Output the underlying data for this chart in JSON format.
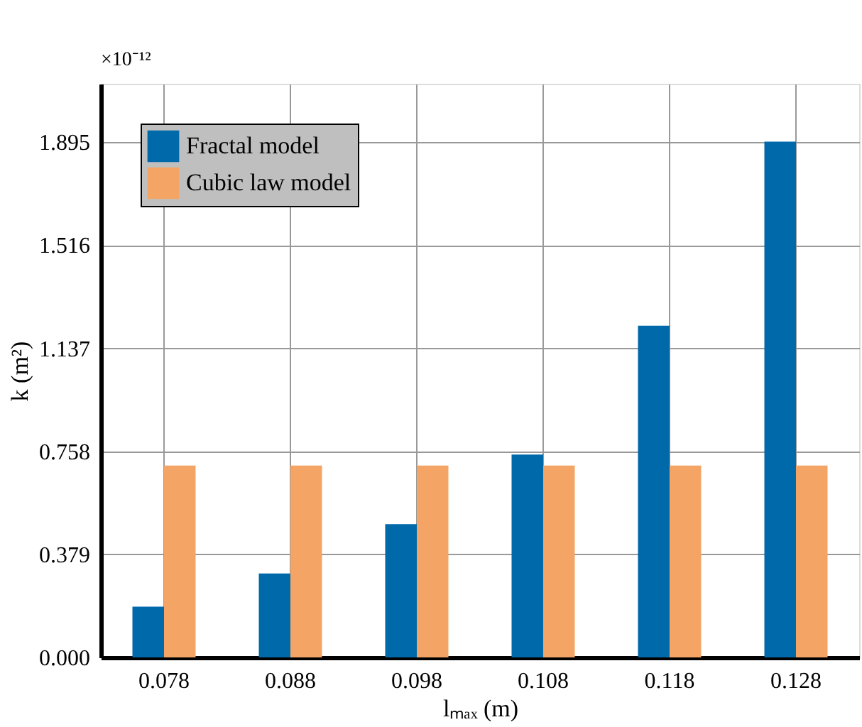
{
  "chart_data": {
    "type": "bar",
    "xlabel": "lₘₐₓ (m)",
    "ylabel": "k (m²)",
    "annotations": [
      "×10⁻¹²"
    ],
    "categories": [
      "0.078",
      "0.088",
      "0.098",
      "0.108",
      "0.118",
      "0.128"
    ],
    "series": [
      {
        "name": "Fractal model",
        "color": "#0069aa",
        "values": [
          0.187,
          0.309,
          0.49,
          0.746,
          1.22,
          1.897
        ]
      },
      {
        "name": "Cubic law model",
        "color": "#f4a566",
        "values": [
          0.706,
          0.706,
          0.706,
          0.706,
          0.706,
          0.706
        ]
      }
    ],
    "ylim": [
      0,
      2.11
    ],
    "yticks": [
      {
        "value": 0,
        "label": "0.000"
      },
      0.379,
      0.758,
      1.137,
      1.516,
      1.895
    ],
    "grid": true,
    "legend": "top left"
  }
}
